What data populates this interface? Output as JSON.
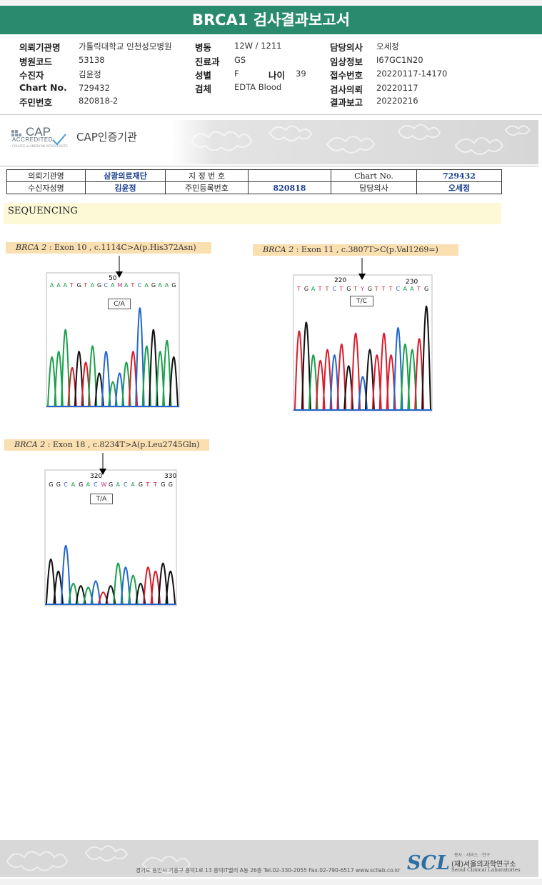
{
  "title": "BRCA1 검사결과보고서",
  "header": {
    "col1": [
      {
        "label": "의뢰기관명",
        "value": "가톨릭대학교 인천성모병원"
      },
      {
        "label": "병원코드",
        "value": "53138"
      },
      {
        "label": "수진자",
        "value": "김윤정"
      },
      {
        "label": "Chart No.",
        "value": "729432"
      },
      {
        "label": "주민번호",
        "value": "820818-2"
      }
    ],
    "col2": [
      {
        "label": "병동",
        "value": "12W / 1211"
      },
      {
        "label": "진료과",
        "value": "GS"
      },
      {
        "label": "성별",
        "value": "F"
      },
      {
        "label": "검체",
        "value": "EDTA Blood"
      }
    ],
    "age": {
      "label": "나이",
      "value": "39"
    },
    "col3": [
      {
        "label": "담당의사",
        "value": "오세정"
      },
      {
        "label": "임상정보",
        "value": "I67GC1N20"
      },
      {
        "label": "접수번호",
        "value": "20220117-14170"
      },
      {
        "label": "검사의뢰",
        "value": "20220117"
      },
      {
        "label": "결과보고",
        "value": "20220216"
      }
    ]
  },
  "cap": {
    "logo_text": "CAP",
    "accredited": "ACCREDITED",
    "fine_print": "COLLEGE of AMERICAN PATHOLOGISTS",
    "cert_label": "CAP인증기관"
  },
  "patient_table": {
    "row1": [
      "의뢰기관명",
      "삼광의료재단",
      "지 정 번 호",
      "",
      "Chart No.",
      "729432"
    ],
    "row2": [
      "수신자성명",
      "김윤정",
      "주민등록번호",
      "820818",
      "담당의사",
      "오세정"
    ]
  },
  "section_title": "SEQUENCING",
  "variants": [
    {
      "gene": "BRCA 2",
      "desc": ": Exon 10 , c.1114C>A(p.His372Asn)",
      "call": "C/A",
      "bases": "AAATGTAGCAMATCAGAAG",
      "pos_labels": [
        "50"
      ]
    },
    {
      "gene": "BRCA 2",
      "desc": ": Exon 11 , c.3807T>C(p.Val1269=)",
      "call": "T/C",
      "bases": "TGATTCTGTYGTTTCAATG",
      "pos_labels": [
        "220",
        "230"
      ]
    },
    {
      "gene": "BRCA 2",
      "desc": ": Exon 18 , c.8234T>A(p.Leu2745Gln)",
      "call": "T/A",
      "bases": "GGCAGACWGACAGTTGG",
      "pos_labels": [
        "320",
        "330"
      ]
    }
  ],
  "footer": {
    "address": "경기도 용인시 기흥구 흥덕1로 13 흥덕IT밸리 A동 26층  Tel.02-330-2055  Fax.02-790-6517  www.scllab.co.kr",
    "logo": "SCL",
    "tagline": "봉사 · 서비스 · 연구",
    "org_ko": "(재)서울의과학연구소",
    "org_en": "Seoul Clinical Laboratories"
  },
  "colors": {
    "title_bar": "#2a8a6e",
    "A": "#1aa04a",
    "C": "#2266cc",
    "G": "#111111",
    "T": "#d81c2b",
    "highlight": "#fadfb1"
  }
}
